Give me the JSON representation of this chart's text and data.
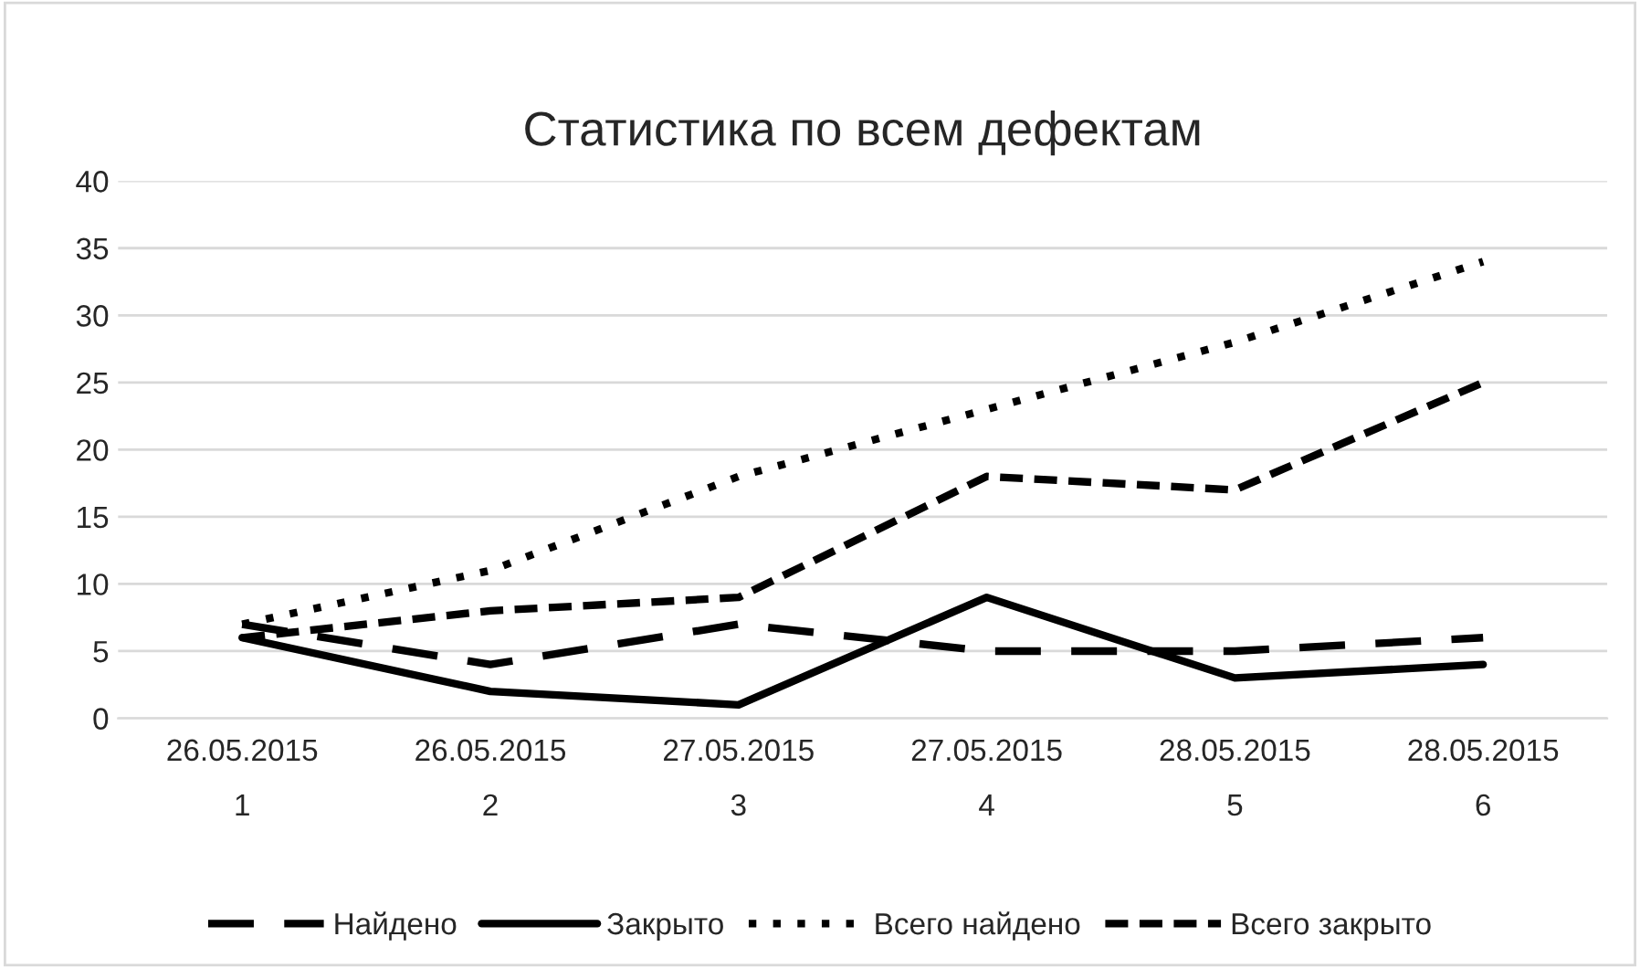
{
  "chart_data": {
    "type": "line",
    "title": "Статистика по всем дефектам",
    "categories": [
      "26.05.2015\n1",
      "26.05.2015\n2",
      "27.05.2015\n3",
      "27.05.2015\n4",
      "28.05.2015\n5",
      "28.05.2015\n6"
    ],
    "series": [
      {
        "name": "Найдено",
        "color": "#000000",
        "line_style": "dashed",
        "values": [
          7,
          4,
          7,
          5,
          5,
          6
        ]
      },
      {
        "name": "Закрыто",
        "color": "#000000",
        "line_style": "solid",
        "values": [
          6,
          2,
          1,
          9,
          3,
          4
        ]
      },
      {
        "name": "Всего найдено",
        "color": "#000000",
        "line_style": "dotted",
        "values": [
          7,
          11,
          18,
          23,
          28,
          34
        ]
      },
      {
        "name": "Всего закрыто",
        "color": "#000000",
        "line_style": "dashed",
        "values": [
          6,
          8,
          9,
          18,
          17,
          25
        ]
      }
    ],
    "ylim": [
      0,
      40
    ],
    "yticks": [
      0,
      5,
      10,
      15,
      20,
      25,
      30,
      35,
      40
    ],
    "grid": "y",
    "legend": "bottom",
    "marker": "none"
  }
}
